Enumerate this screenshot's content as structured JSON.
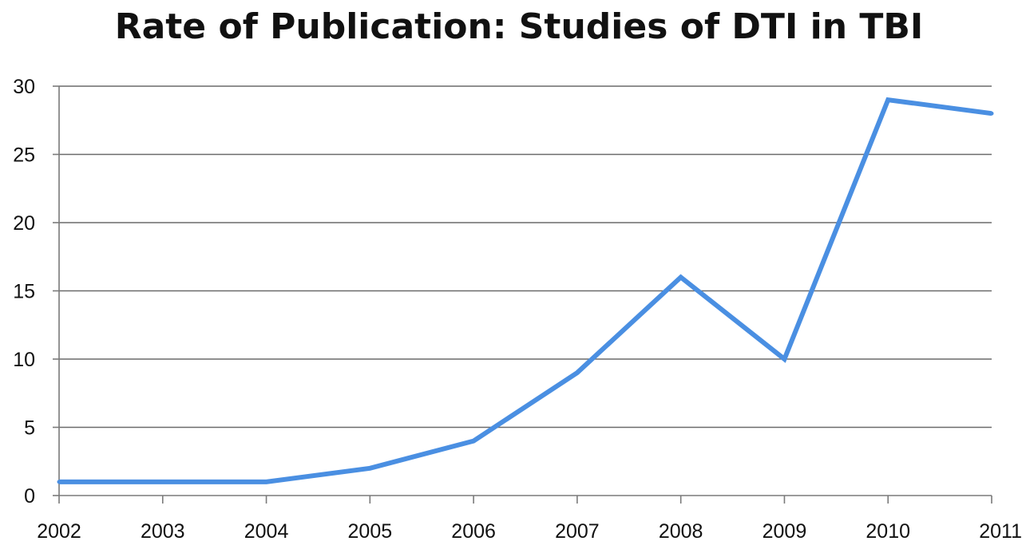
{
  "chart_data": {
    "type": "line",
    "title": "Rate of Publication: Studies of DTI in TBI",
    "xlabel": "",
    "ylabel": "",
    "categories": [
      "2002",
      "2003",
      "2004",
      "2005",
      "2006",
      "2007",
      "2008",
      "2009",
      "2010",
      "2011"
    ],
    "series": [
      {
        "values": [
          1,
          1,
          1,
          2,
          4,
          9,
          16,
          10,
          29,
          28
        ]
      }
    ],
    "ylim": [
      0,
      30
    ],
    "yticks": [
      "0",
      "5",
      "10",
      "15",
      "20",
      "25",
      "30"
    ],
    "grid": true,
    "legend": "none",
    "colors": {
      "line": "#4a8fe2",
      "grid": "#6a6a6a",
      "axis": "#7a7a7a"
    }
  }
}
